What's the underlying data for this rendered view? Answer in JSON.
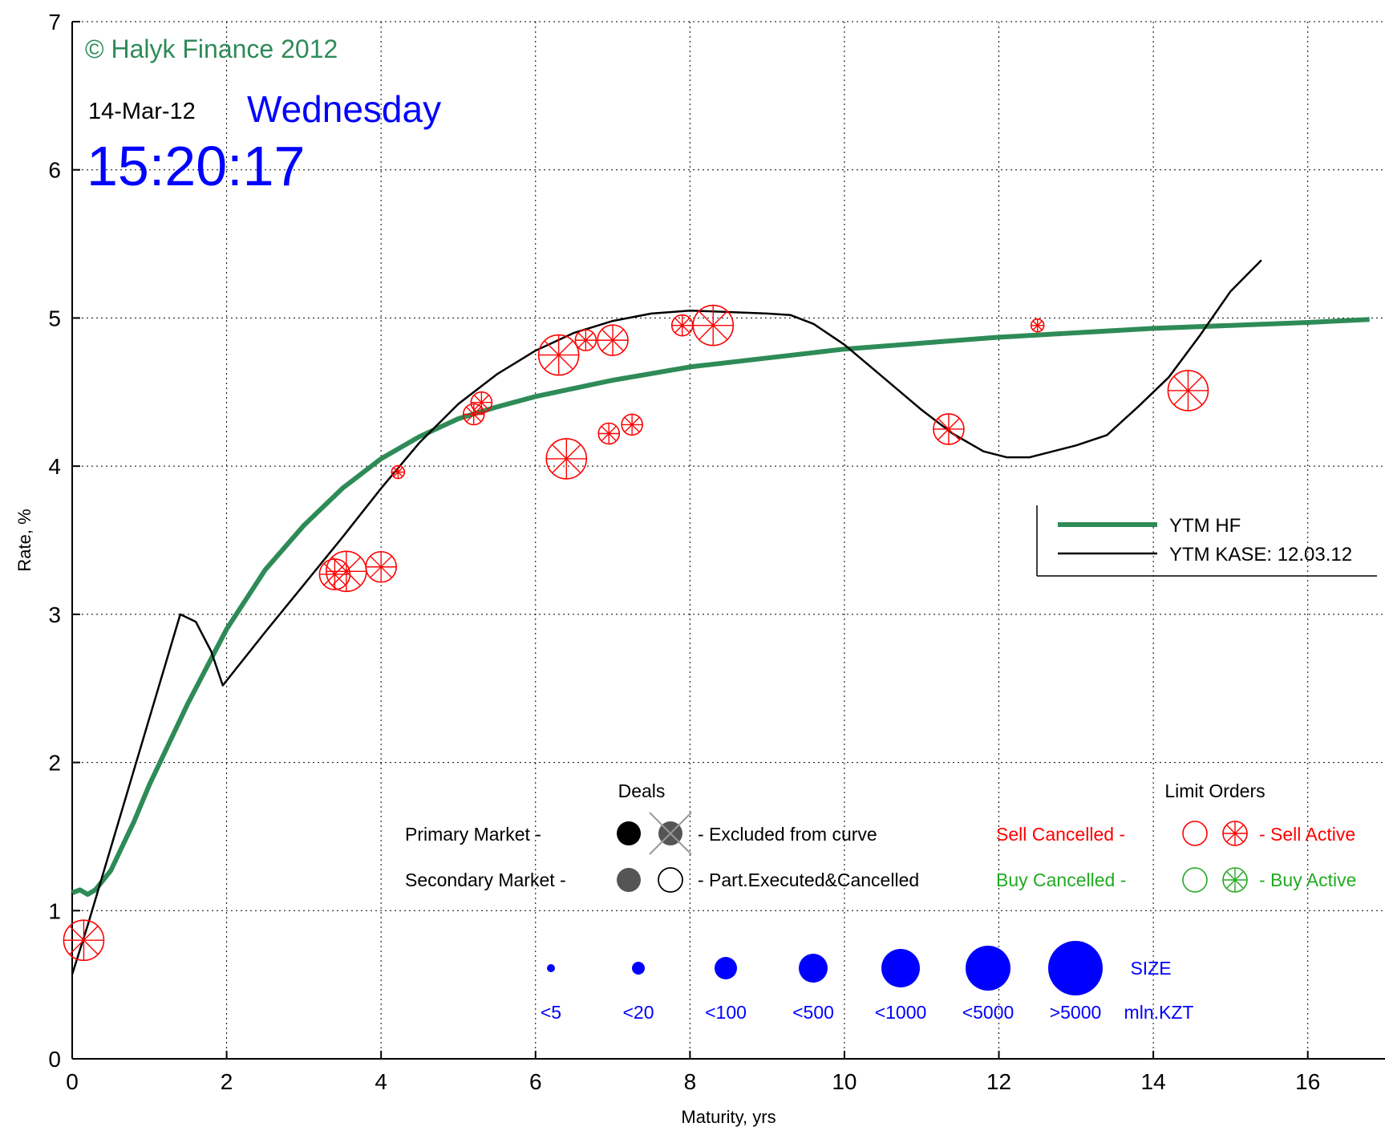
{
  "header": {
    "copyright": "© Halyk Finance 2012",
    "date": "14-Mar-12",
    "weekday": "Wednesday",
    "time": "15:20:17"
  },
  "chart_data": {
    "type": "line",
    "title": "",
    "xlabel": "Maturity, yrs",
    "ylabel": "Rate, %",
    "xlim": [
      0,
      17
    ],
    "ylim": [
      0,
      7
    ],
    "grid": true,
    "x_ticks": [
      0,
      2,
      4,
      6,
      8,
      10,
      12,
      14,
      16
    ],
    "y_ticks": [
      0,
      1,
      2,
      3,
      4,
      5,
      6,
      7
    ],
    "legend": {
      "placement": "right",
      "entries": [
        "YTM HF",
        "YTM KASE: 12.03.12"
      ]
    },
    "series": [
      {
        "name": "YTM HF",
        "color": "#2e8b57",
        "points": [
          [
            0.0,
            1.12
          ],
          [
            0.1,
            1.14
          ],
          [
            0.2,
            1.11
          ],
          [
            0.3,
            1.14
          ],
          [
            0.5,
            1.27
          ],
          [
            0.8,
            1.6
          ],
          [
            1.0,
            1.85
          ],
          [
            1.5,
            2.4
          ],
          [
            2.0,
            2.9
          ],
          [
            2.5,
            3.3
          ],
          [
            3.0,
            3.6
          ],
          [
            3.5,
            3.85
          ],
          [
            4.0,
            4.05
          ],
          [
            4.5,
            4.2
          ],
          [
            5.0,
            4.32
          ],
          [
            5.5,
            4.4
          ],
          [
            6.0,
            4.47
          ],
          [
            7.0,
            4.58
          ],
          [
            8.0,
            4.67
          ],
          [
            9.0,
            4.73
          ],
          [
            10.0,
            4.79
          ],
          [
            11.0,
            4.83
          ],
          [
            12.0,
            4.87
          ],
          [
            13.0,
            4.9
          ],
          [
            14.0,
            4.93
          ],
          [
            15.0,
            4.95
          ],
          [
            16.0,
            4.97
          ],
          [
            16.8,
            4.99
          ]
        ]
      },
      {
        "name": "YTM KASE: 12.03.12",
        "color": "#000000",
        "points": [
          [
            0.0,
            0.57
          ],
          [
            0.2,
            0.9
          ],
          [
            0.6,
            1.6
          ],
          [
            1.0,
            2.3
          ],
          [
            1.4,
            3.0
          ],
          [
            1.6,
            2.95
          ],
          [
            1.8,
            2.75
          ],
          [
            1.95,
            2.52
          ],
          [
            2.5,
            2.88
          ],
          [
            3.0,
            3.2
          ],
          [
            3.5,
            3.52
          ],
          [
            4.0,
            3.85
          ],
          [
            4.5,
            4.16
          ],
          [
            5.0,
            4.42
          ],
          [
            5.5,
            4.62
          ],
          [
            6.0,
            4.78
          ],
          [
            6.5,
            4.9
          ],
          [
            7.0,
            4.98
          ],
          [
            7.5,
            5.03
          ],
          [
            8.0,
            5.05
          ],
          [
            8.5,
            5.04
          ],
          [
            9.0,
            5.03
          ],
          [
            9.3,
            5.02
          ],
          [
            9.6,
            4.96
          ],
          [
            10.0,
            4.82
          ],
          [
            10.5,
            4.6
          ],
          [
            11.0,
            4.38
          ],
          [
            11.4,
            4.22
          ],
          [
            11.8,
            4.1
          ],
          [
            12.1,
            4.06
          ],
          [
            12.4,
            4.06
          ],
          [
            13.0,
            4.14
          ],
          [
            13.4,
            4.21
          ],
          [
            13.8,
            4.4
          ],
          [
            14.2,
            4.6
          ],
          [
            14.6,
            4.88
          ],
          [
            15.0,
            5.18
          ],
          [
            15.4,
            5.39
          ]
        ]
      }
    ],
    "limit_orders": {
      "color": "#ff0000",
      "points": [
        [
          0.15,
          0.8,
          4
        ],
        [
          3.4,
          3.27,
          3
        ],
        [
          3.55,
          3.29,
          4
        ],
        [
          4.0,
          3.32,
          3
        ],
        [
          4.22,
          3.96,
          1
        ],
        [
          5.2,
          4.35,
          2
        ],
        [
          5.3,
          4.43,
          2
        ],
        [
          6.3,
          4.75,
          4
        ],
        [
          6.65,
          4.85,
          2
        ],
        [
          7.0,
          4.85,
          3
        ],
        [
          6.4,
          4.05,
          4
        ],
        [
          6.95,
          4.22,
          2
        ],
        [
          7.25,
          4.28,
          2
        ],
        [
          7.9,
          4.95,
          2
        ],
        [
          8.3,
          4.95,
          4
        ],
        [
          11.35,
          4.25,
          3
        ],
        [
          12.5,
          4.95,
          1
        ],
        [
          14.45,
          4.51,
          4
        ]
      ]
    },
    "key": {
      "deals_title": "Deals",
      "limit_orders_title": "Limit Orders",
      "primary_market": "Primary Market  -",
      "secondary_market": "Secondary Market -",
      "excluded": "- Excluded from curve",
      "part_executed": "- Part.Executed&Cancelled",
      "sell_cancelled": "Sell Cancelled -",
      "sell_active": "- Sell Active",
      "buy_cancelled": "Buy Cancelled -",
      "buy_active": "- Buy Active",
      "size_title": "SIZE",
      "size_unit": "mln.KZT",
      "size_labels": [
        "<5",
        "<20",
        "<100",
        "<500",
        "<1000",
        "<5000",
        ">5000"
      ]
    }
  },
  "colors": {
    "hf_green": "#2e8b57",
    "kase_black": "#000000",
    "order_red": "#ff0000",
    "buy_green": "#22aa22",
    "size_blue": "#0000ff",
    "deal_gray": "#555555"
  }
}
